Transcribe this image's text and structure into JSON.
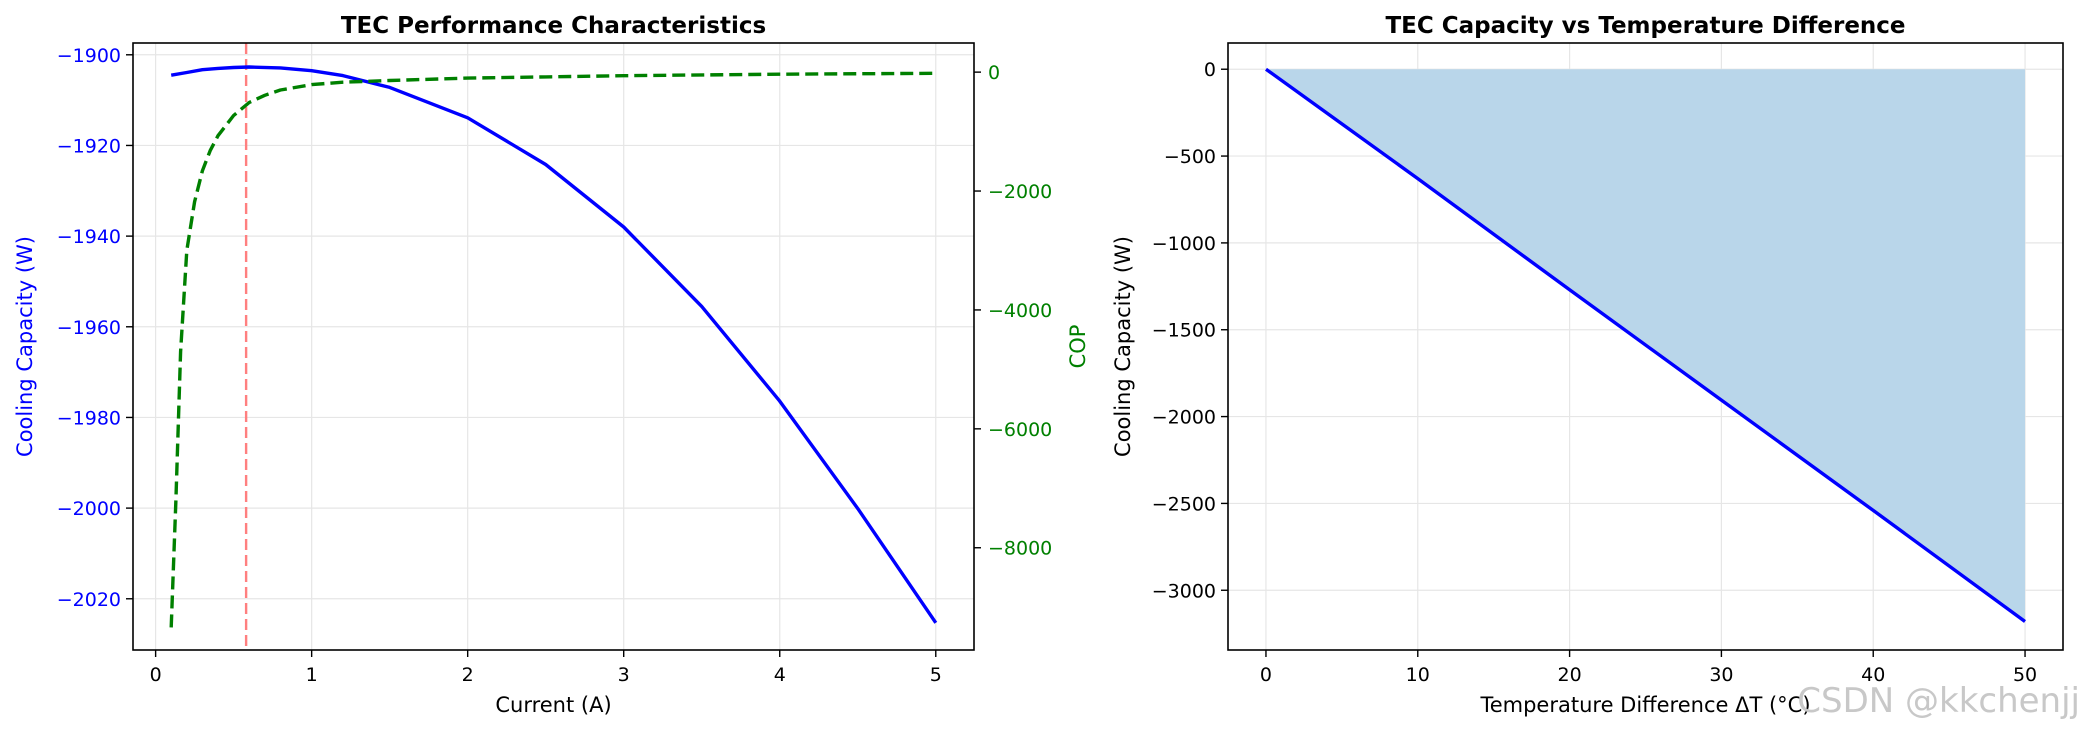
{
  "colors": {
    "cooling_line": "#0000ff",
    "cop_line": "#008000",
    "optimum_marker": "#ff7f7f",
    "fill": "#b9d6ea",
    "grid": "#e6e6e6",
    "axis": "#000000",
    "watermark": "#c8c8c8"
  },
  "watermark": "CSDN @kkchenjj",
  "chart_data": [
    {
      "type": "line",
      "title": "TEC Performance Characteristics",
      "xlabel": "Current (A)",
      "ylabel": "Cooling Capacity (W)",
      "y2label": "COP",
      "xlim": [
        -0.145,
        5.245
      ],
      "ylim": [
        -2031.3,
        -1897.4
      ],
      "y2lim": [
        -9720,
        490
      ],
      "xticks": [
        0,
        1,
        2,
        3,
        4,
        5
      ],
      "yticks": [
        -2020,
        -2000,
        -1980,
        -1960,
        -1940,
        -1920,
        -1900
      ],
      "y2ticks": [
        -8000,
        -6000,
        -4000,
        -2000,
        0
      ],
      "x_tick_labels": [
        "0",
        "1",
        "2",
        "3",
        "4",
        "5"
      ],
      "y_tick_labels": [
        "−2020",
        "−2000",
        "−1980",
        "−1960",
        "−1940",
        "−1920",
        "−1900"
      ],
      "y2_tick_labels": [
        "−8000",
        "−6000",
        "−4000",
        "−2000",
        "0"
      ],
      "grid": true,
      "series": [
        {
          "name": "Cooling Capacity (W)",
          "axis": "left",
          "style": "solid",
          "color": "#0000ff",
          "x": [
            0.1,
            0.2,
            0.3,
            0.4,
            0.5,
            0.6,
            0.8,
            1.0,
            1.2,
            1.5,
            2.0,
            2.5,
            3.0,
            3.5,
            4.0,
            4.5,
            5.0
          ],
          "y": [
            -1904.5,
            -1903.9,
            -1903.3,
            -1903.0,
            -1902.8,
            -1902.7,
            -1902.9,
            -1903.5,
            -1904.6,
            -1907.2,
            -1913.9,
            -1924.2,
            -1938.0,
            -1955.5,
            -1976.4,
            -2000.1,
            -2025.3
          ]
        },
        {
          "name": "COP",
          "axis": "right",
          "style": "dashed",
          "color": "#008000",
          "x": [
            0.1,
            0.13,
            0.16,
            0.2,
            0.25,
            0.3,
            0.35,
            0.4,
            0.5,
            0.6,
            0.7,
            0.8,
            1.0,
            1.2,
            1.5,
            2.0,
            2.5,
            3.0,
            4.0,
            5.0
          ],
          "y": [
            -9340,
            -7200,
            -4700,
            -3000,
            -2180,
            -1660,
            -1320,
            -1070,
            -730,
            -510,
            -390,
            -300,
            -210,
            -170,
            -140,
            -100,
            -80,
            -60,
            -35,
            -20
          ]
        }
      ],
      "annotations": [
        {
          "type": "vline",
          "x": 0.58,
          "style": "dashed",
          "color": "#ff7f7f",
          "note": "optimal current"
        }
      ]
    },
    {
      "type": "area",
      "title": "TEC Capacity vs Temperature Difference",
      "xlabel": "Temperature Difference ΔT (°C)",
      "ylabel": "Cooling Capacity (W)",
      "xlim": [
        -2.5,
        52.5
      ],
      "ylim": [
        -3344,
        151
      ],
      "xticks": [
        0,
        10,
        20,
        30,
        40,
        50
      ],
      "yticks": [
        -3000,
        -2500,
        -2000,
        -1500,
        -1000,
        -500,
        0
      ],
      "x_tick_labels": [
        "0",
        "10",
        "20",
        "30",
        "40",
        "50"
      ],
      "y_tick_labels": [
        "−3000",
        "−2500",
        "−2000",
        "−1500",
        "−1000",
        "−500",
        "0"
      ],
      "grid": true,
      "series": [
        {
          "name": "Cooling Capacity (W)",
          "style": "solid",
          "color": "#0000ff",
          "fill_to": 0,
          "fill_color": "#b9d6ea",
          "x": [
            0,
            10,
            20,
            30,
            40,
            50
          ],
          "y": [
            0,
            -630,
            -1270,
            -1905,
            -2540,
            -3180
          ]
        }
      ]
    }
  ]
}
